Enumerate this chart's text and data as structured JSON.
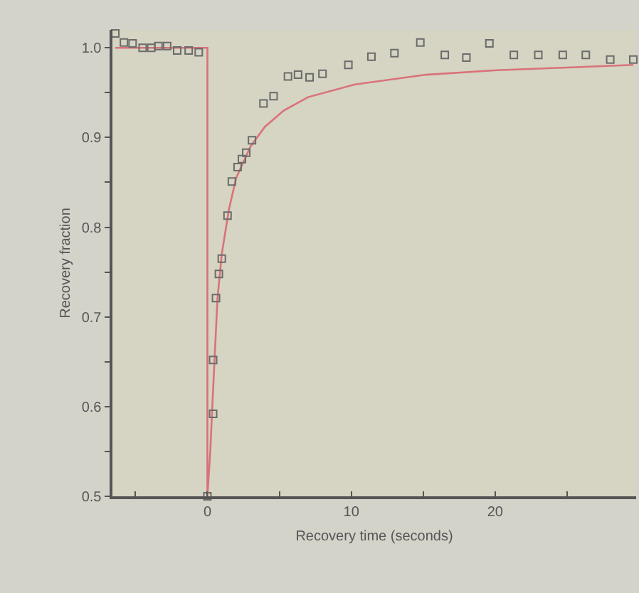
{
  "chart_data": {
    "type": "scatter",
    "xlabel": "Recovery time (seconds)",
    "ylabel": "Recovery fraction",
    "xlim": [
      -6.6,
      29.8
    ],
    "ylim": [
      0.5,
      1.02
    ],
    "xticks": [
      {
        "value": -5,
        "label": null
      },
      0,
      {
        "value": 5,
        "label": null
      },
      10,
      {
        "value": 15,
        "label": null
      },
      20,
      {
        "value": 25,
        "label": null
      }
    ],
    "yticks": [
      "0.5",
      {
        "value": 0.55,
        "label": null
      },
      0.6,
      {
        "value": 0.65,
        "label": null
      },
      0.7,
      {
        "value": 0.75,
        "label": null
      },
      0.8,
      {
        "value": 0.85,
        "label": null
      },
      0.9,
      {
        "value": 0.95,
        "label": null
      },
      "1.0"
    ],
    "grid": false,
    "legend": false,
    "series": [
      {
        "marker": "square",
        "color": "#6b6b6b",
        "x": [
          -6.4,
          -5.8,
          -5.2,
          -4.5,
          -3.9,
          -3.4,
          -2.8,
          -2.1,
          -1.3,
          -0.6,
          0,
          0.4,
          0.4,
          0.6,
          0.8,
          1.0,
          1.4,
          1.7,
          2.1,
          2.4,
          2.7,
          3.1,
          3.9,
          4.6,
          5.6,
          6.3,
          7.1,
          8.0,
          9.8,
          11.4,
          13.0,
          14.8,
          16.5,
          18.0,
          19.6,
          21.3,
          23.0,
          24.7,
          26.3,
          28.0,
          29.6
        ],
        "values": [
          1.016,
          1.006,
          1.005,
          1.0,
          1.0,
          1.002,
          1.002,
          0.997,
          0.997,
          0.995,
          0.5,
          0.592,
          0.652,
          0.721,
          0.748,
          0.765,
          0.813,
          0.851,
          0.867,
          0.876,
          0.883,
          0.897,
          0.938,
          0.946,
          0.968,
          0.97,
          0.967,
          0.971,
          0.981,
          0.99,
          0.994,
          1.006,
          0.992,
          0.989,
          1.005,
          0.992,
          0.992,
          0.992,
          0.992,
          0.987,
          0.987
        ]
      },
      {
        "type": "line",
        "marker": "none",
        "color": "#d9727a",
        "x": [
          -6.4,
          0,
          0,
          0.2,
          0.4,
          0.7,
          1.0,
          1.5,
          2,
          3,
          4,
          5.3,
          7,
          10.2,
          15.2,
          20.1,
          25,
          29.6
        ],
        "values": [
          1.0,
          1.0,
          0.5,
          0.55,
          0.62,
          0.72,
          0.77,
          0.82,
          0.855,
          0.89,
          0.912,
          0.93,
          0.945,
          0.959,
          0.97,
          0.975,
          0.978,
          0.981
        ]
      }
    ]
  }
}
